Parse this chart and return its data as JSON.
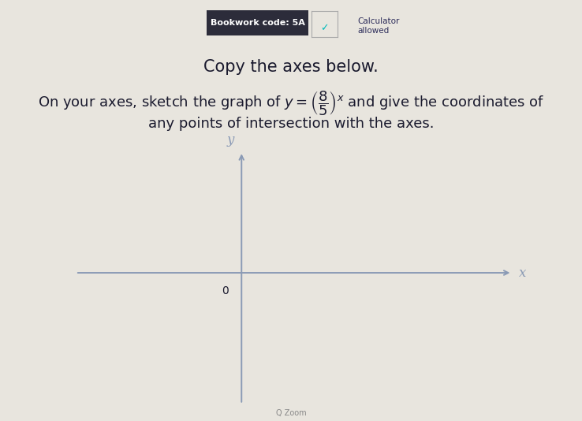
{
  "background_color": "#cccac4",
  "content_bg": "#e8e5de",
  "title_text": "Copy the axes below.",
  "title_fontsize": 15,
  "title_color": "#1a1a2e",
  "body_fontsize": 13,
  "body_color": "#1a1a2e",
  "body_text_line2": "any points of intersection with the axes.",
  "bookwork_label": "Bookwork code: 5A",
  "axes_color": "#8a9ab5",
  "axes_linewidth": 1.4,
  "origin_label": "0",
  "x_label": "x",
  "y_label": "y",
  "header_bg_color": "#2c2c3a",
  "header_text_color": "#ffffff",
  "header_fontsize": 8,
  "zoom_text": "Q Zoom",
  "zoom_color": "#888888",
  "zoom_fontsize": 7
}
